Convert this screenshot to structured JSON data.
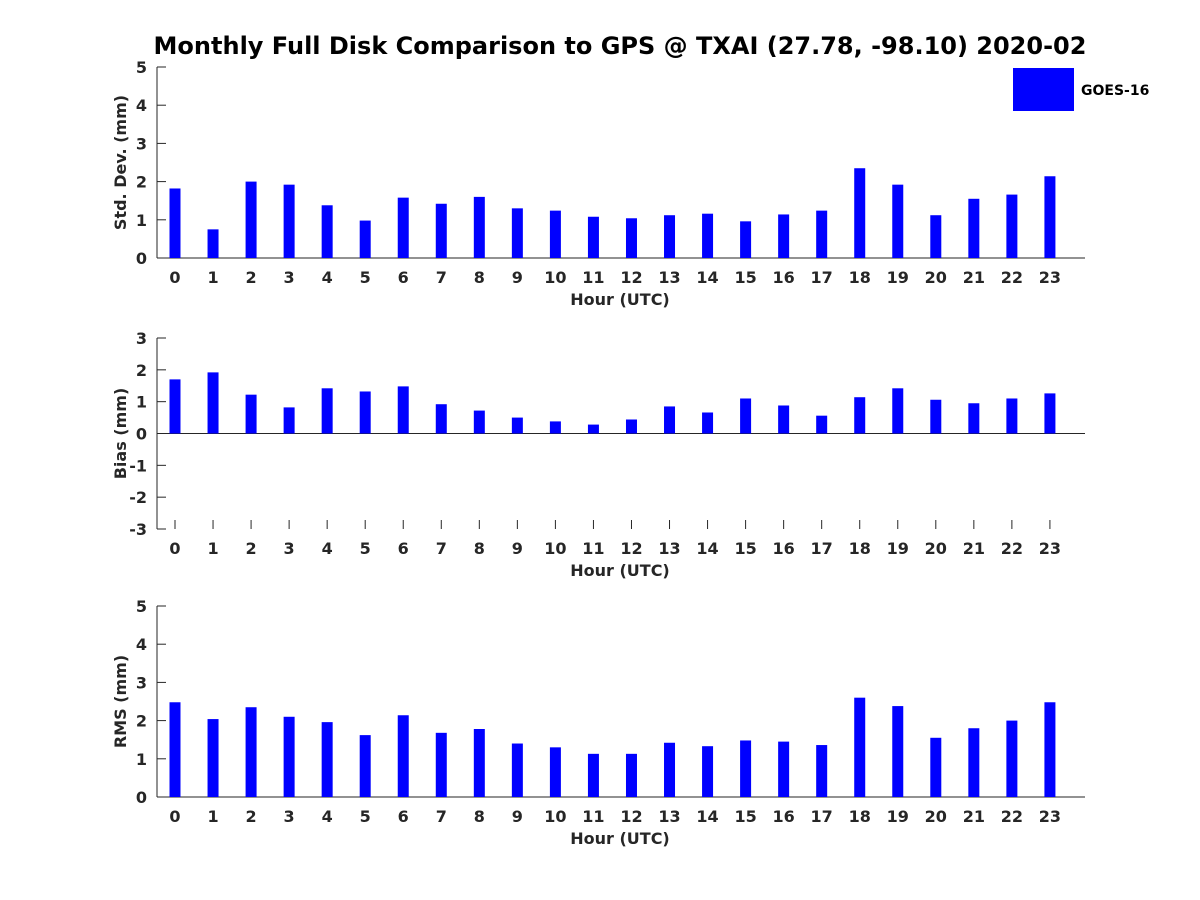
{
  "title": "Monthly Full Disk Comparison to GPS @ TXAI (27.78, -98.10) 2020-02",
  "legend": {
    "label": "GOES-16",
    "color": "#0000ff",
    "placement": "top-right"
  },
  "chart_data": [
    {
      "type": "bar",
      "title": "Monthly Full Disk Comparison to GPS @ TXAI (27.78, -98.10) 2020-02",
      "xlabel": "Hour (UTC)",
      "ylabel": "Std. Dev. (mm)",
      "ylim": [
        0,
        5
      ],
      "yticks": [
        "0",
        "1",
        "2",
        "3",
        "4",
        "5"
      ],
      "grid": false,
      "categories": [
        "0",
        "1",
        "2",
        "3",
        "4",
        "5",
        "6",
        "7",
        "8",
        "9",
        "10",
        "11",
        "12",
        "13",
        "14",
        "15",
        "16",
        "17",
        "18",
        "19",
        "20",
        "21",
        "22",
        "23"
      ],
      "series": [
        {
          "name": "GOES-16",
          "color": "#0000ff",
          "values": [
            1.82,
            0.75,
            2.0,
            1.92,
            1.38,
            0.98,
            1.58,
            1.42,
            1.6,
            1.3,
            1.24,
            1.08,
            1.04,
            1.12,
            1.16,
            0.96,
            1.14,
            1.24,
            2.35,
            1.92,
            1.12,
            1.55,
            1.66,
            2.14
          ]
        }
      ]
    },
    {
      "type": "bar",
      "xlabel": "Hour (UTC)",
      "ylabel": "Bias (mm)",
      "ylim": [
        -3,
        3
      ],
      "yticks": [
        "-3",
        "-2",
        "-1",
        "0",
        "1",
        "2",
        "3"
      ],
      "grid": false,
      "categories": [
        "0",
        "1",
        "2",
        "3",
        "4",
        "5",
        "6",
        "7",
        "8",
        "9",
        "10",
        "11",
        "12",
        "13",
        "14",
        "15",
        "16",
        "17",
        "18",
        "19",
        "20",
        "21",
        "22",
        "23"
      ],
      "series": [
        {
          "name": "GOES-16",
          "color": "#0000ff",
          "values": [
            1.7,
            1.92,
            1.22,
            0.82,
            1.42,
            1.32,
            1.48,
            0.92,
            0.72,
            0.5,
            0.38,
            0.28,
            0.44,
            0.85,
            0.66,
            1.1,
            0.88,
            0.56,
            1.14,
            1.42,
            1.06,
            0.95,
            1.1,
            1.26
          ]
        }
      ]
    },
    {
      "type": "bar",
      "xlabel": "Hour (UTC)",
      "ylabel": "RMS (mm)",
      "ylim": [
        0,
        5
      ],
      "yticks": [
        "0",
        "1",
        "2",
        "3",
        "4",
        "5"
      ],
      "grid": false,
      "categories": [
        "0",
        "1",
        "2",
        "3",
        "4",
        "5",
        "6",
        "7",
        "8",
        "9",
        "10",
        "11",
        "12",
        "13",
        "14",
        "15",
        "16",
        "17",
        "18",
        "19",
        "20",
        "21",
        "22",
        "23"
      ],
      "series": [
        {
          "name": "GOES-16",
          "color": "#0000ff",
          "values": [
            2.48,
            2.04,
            2.35,
            2.1,
            1.96,
            1.62,
            2.14,
            1.68,
            1.78,
            1.4,
            1.3,
            1.13,
            1.13,
            1.42,
            1.33,
            1.48,
            1.45,
            1.36,
            2.6,
            2.38,
            1.55,
            1.8,
            2.0,
            2.48
          ]
        }
      ]
    }
  ]
}
